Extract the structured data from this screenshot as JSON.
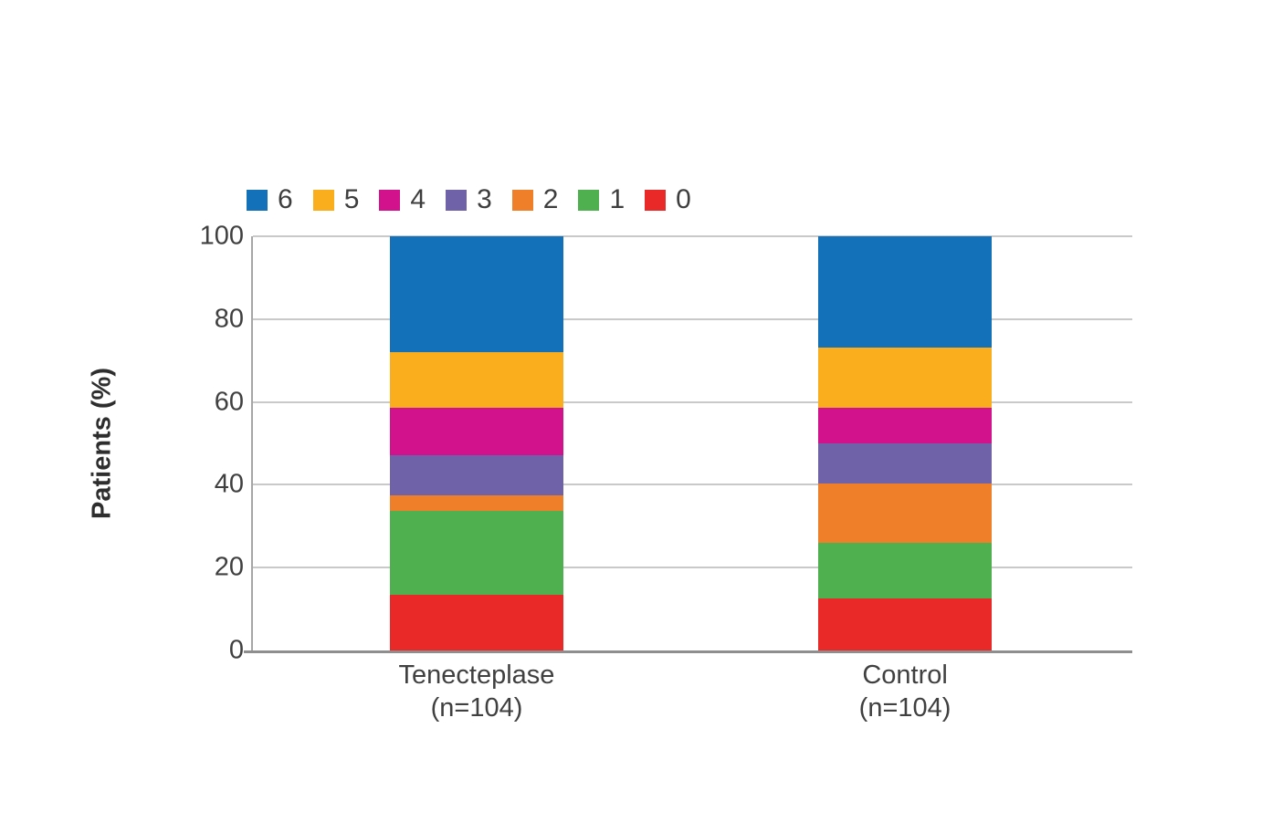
{
  "chart_data": {
    "type": "bar",
    "stacked": true,
    "title": "",
    "xlabel": "",
    "ylabel": "Patients (%)",
    "ylim": [
      0,
      100
    ],
    "yticks": [
      0,
      20,
      40,
      60,
      80,
      100
    ],
    "grid": "horizontal",
    "legend_position": "top-left",
    "legend_order": [
      "6",
      "5",
      "4",
      "3",
      "2",
      "1",
      "0"
    ],
    "categories": [
      {
        "name": "Tenecteplase",
        "n_label": "(n=104)"
      },
      {
        "name": "Control",
        "n_label": "(n=104)"
      }
    ],
    "series": [
      {
        "name": "6",
        "color": "#1271B8",
        "values": [
          27.9,
          26.9
        ]
      },
      {
        "name": "5",
        "color": "#FBAE1D",
        "values": [
          13.5,
          14.4
        ]
      },
      {
        "name": "4",
        "color": "#D2118C",
        "values": [
          11.5,
          8.7
        ]
      },
      {
        "name": "3",
        "color": "#6F62A9",
        "values": [
          9.6,
          9.6
        ]
      },
      {
        "name": "2",
        "color": "#EF7F28",
        "values": [
          3.8,
          14.4
        ]
      },
      {
        "name": "1",
        "color": "#4FB04F",
        "values": [
          20.2,
          13.5
        ]
      },
      {
        "name": "0",
        "color": "#E82928",
        "values": [
          13.5,
          12.5
        ]
      }
    ]
  }
}
